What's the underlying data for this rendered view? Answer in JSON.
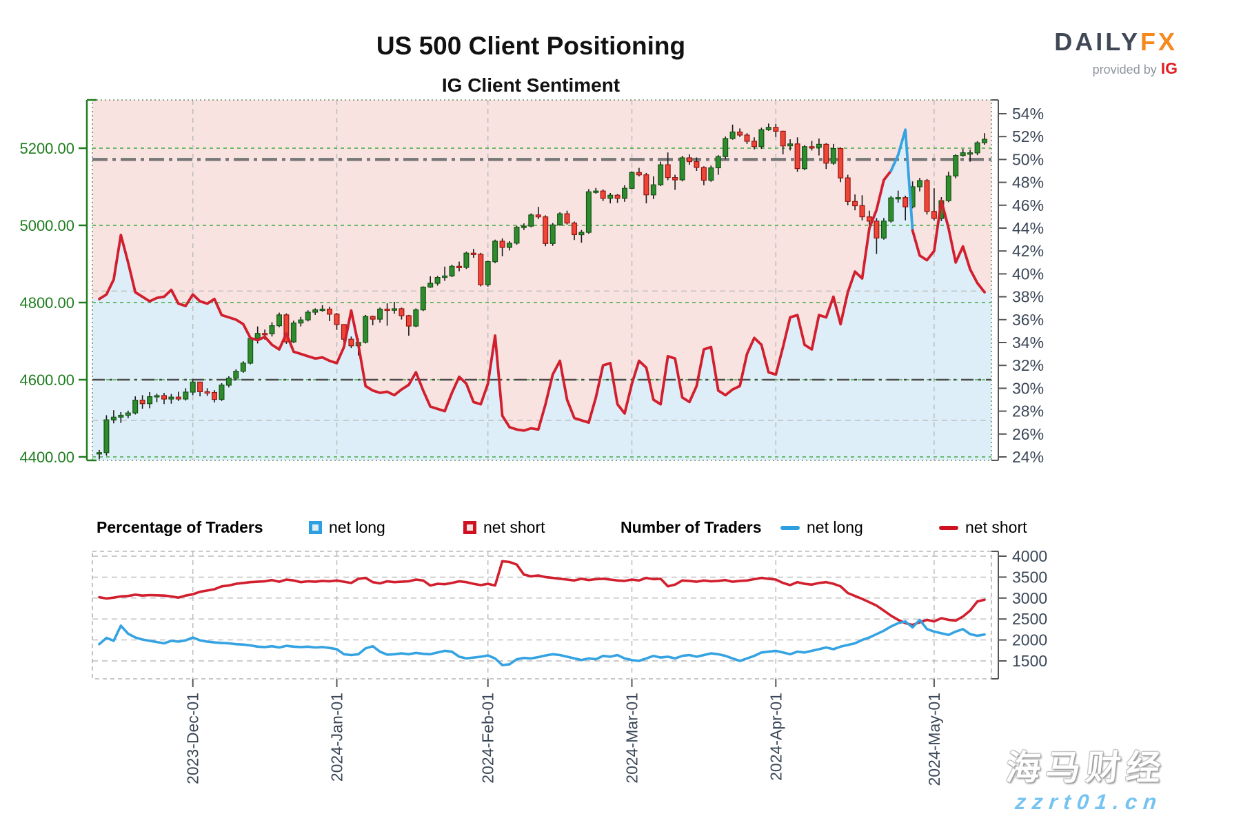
{
  "title": "US 500 Client Positioning",
  "subtitle": "IG Client Sentiment",
  "logo": {
    "daily": "DAILY",
    "fx": "FX",
    "provided": "provided by",
    "ig": "IG"
  },
  "legend": {
    "pct_header": "Percentage of Traders",
    "num_header": "Number of Traders",
    "net_long": "net long",
    "net_short": "net short"
  },
  "watermark": {
    "line1": "海马财经",
    "line2": "zzrt01.cn"
  },
  "colors": {
    "net_long": "#35a3e2",
    "net_short": "#d21f2e",
    "fill_above_line": "#f8e3e1",
    "fill_below_line": "#ddeef8",
    "candle_up": "#2e8b2e",
    "candle_up_border": "#155415",
    "candle_down": "#ef4537",
    "candle_down_border": "#971510",
    "wick": "#1a1a1a",
    "grid_green": "#3faa3f",
    "grid_gray": "#bcbcbc",
    "dashdot_thick": "#787878",
    "dashdot_dark": "#4a4a4a",
    "axis_left": "#1e7d1e",
    "axis_right": "#555555",
    "tick_text": "#3b4757",
    "border_main": "#6b8f6b",
    "border_sub": "#b5b5b5"
  },
  "chart_data": [
    {
      "type": "candlestick+line",
      "title": "US 500 daily price (candles, left axis) vs IG client sentiment % net long (line, right axis)",
      "n_points": 124,
      "x_tick_labels": [
        "2023-Dec-01",
        "2024-Jan-01",
        "2024-Feb-01",
        "2024-Mar-01",
        "2024-Apr-01",
        "2024-May-01"
      ],
      "x_tick_indices": [
        13,
        33,
        54,
        74,
        94,
        116
      ],
      "price_axis": {
        "tick_labels": [
          "4400.00",
          "4600.00",
          "4800.00",
          "5000.00",
          "5200.00"
        ],
        "tick_values": [
          4400,
          4600,
          4800,
          5000,
          5200
        ]
      },
      "pct_axis": {
        "min": 24,
        "max": 54,
        "step": 2,
        "unit": "%"
      },
      "hlines": [
        {
          "axis": "pct",
          "value": 50,
          "style": "dashdot-thick"
        },
        {
          "axis": "price",
          "value": 4600,
          "style": "dashdot-dark"
        },
        {
          "axis": "pct",
          "value": 38.5,
          "style": "gray-dashed"
        },
        {
          "axis": "pct",
          "value": 27.2,
          "style": "gray-dashed"
        }
      ],
      "blue_above_pct": 49.9,
      "candles": [
        [
          4408,
          4418,
          4394,
          4411
        ],
        [
          4411,
          4508,
          4403,
          4496
        ],
        [
          4496,
          4521,
          4487,
          4503
        ],
        [
          4503,
          4516,
          4488,
          4508
        ],
        [
          4508,
          4520,
          4500,
          4514
        ],
        [
          4514,
          4557,
          4510,
          4547
        ],
        [
          4547,
          4560,
          4525,
          4538
        ],
        [
          4538,
          4568,
          4526,
          4556
        ],
        [
          4556,
          4564,
          4542,
          4559
        ],
        [
          4559,
          4566,
          4537,
          4550
        ],
        [
          4550,
          4563,
          4538,
          4555
        ],
        [
          4555,
          4569,
          4545,
          4550
        ],
        [
          4550,
          4578,
          4546,
          4568
        ],
        [
          4568,
          4599,
          4560,
          4594
        ],
        [
          4594,
          4595,
          4557,
          4569
        ],
        [
          4569,
          4578,
          4558,
          4567
        ],
        [
          4567,
          4573,
          4541,
          4549
        ],
        [
          4549,
          4591,
          4545,
          4586
        ],
        [
          4586,
          4609,
          4580,
          4604
        ],
        [
          4604,
          4627,
          4599,
          4622
        ],
        [
          4622,
          4648,
          4618,
          4643
        ],
        [
          4643,
          4712,
          4640,
          4707
        ],
        [
          4707,
          4738,
          4694,
          4720
        ],
        [
          4720,
          4730,
          4704,
          4719
        ],
        [
          4719,
          4749,
          4712,
          4740
        ],
        [
          4740,
          4774,
          4736,
          4768
        ],
        [
          4768,
          4772,
          4693,
          4698
        ],
        [
          4698,
          4753,
          4695,
          4747
        ],
        [
          4747,
          4763,
          4738,
          4755
        ],
        [
          4755,
          4780,
          4751,
          4775
        ],
        [
          4775,
          4785,
          4768,
          4781
        ],
        [
          4781,
          4793,
          4776,
          4783
        ],
        [
          4783,
          4789,
          4752,
          4770
        ],
        [
          4770,
          4773,
          4729,
          4743
        ],
        [
          4743,
          4744,
          4696,
          4705
        ],
        [
          4705,
          4712,
          4682,
          4688
        ],
        [
          4688,
          4707,
          4663,
          4697
        ],
        [
          4697,
          4768,
          4694,
          4764
        ],
        [
          4764,
          4766,
          4741,
          4757
        ],
        [
          4757,
          4787,
          4748,
          4783
        ],
        [
          4783,
          4798,
          4740,
          4780
        ],
        [
          4780,
          4802,
          4771,
          4784
        ],
        [
          4784,
          4787,
          4756,
          4766
        ],
        [
          4766,
          4768,
          4714,
          4739
        ],
        [
          4739,
          4785,
          4736,
          4781
        ],
        [
          4781,
          4842,
          4778,
          4840
        ],
        [
          4840,
          4868,
          4838,
          4850
        ],
        [
          4850,
          4869,
          4844,
          4865
        ],
        [
          4865,
          4893,
          4856,
          4869
        ],
        [
          4869,
          4898,
          4866,
          4894
        ],
        [
          4894,
          4906,
          4881,
          4891
        ],
        [
          4891,
          4932,
          4887,
          4928
        ],
        [
          4928,
          4939,
          4916,
          4925
        ],
        [
          4925,
          4929,
          4842,
          4846
        ],
        [
          4846,
          4909,
          4841,
          4906
        ],
        [
          4906,
          4963,
          4902,
          4959
        ],
        [
          4959,
          4966,
          4920,
          4943
        ],
        [
          4943,
          4959,
          4935,
          4954
        ],
        [
          4954,
          4999,
          4950,
          4995
        ],
        [
          4995,
          5005,
          4988,
          4998
        ],
        [
          4998,
          5031,
          4995,
          5027
        ],
        [
          5027,
          5048,
          5016,
          5022
        ],
        [
          5022,
          5026,
          4946,
          4953
        ],
        [
          4953,
          5006,
          4947,
          5001
        ],
        [
          5001,
          5034,
          4999,
          5030
        ],
        [
          5030,
          5038,
          5002,
          5006
        ],
        [
          5006,
          5010,
          4962,
          4976
        ],
        [
          4976,
          4988,
          4955,
          4982
        ],
        [
          4982,
          5094,
          4978,
          5087
        ],
        [
          5087,
          5097,
          5082,
          5089
        ],
        [
          5089,
          5093,
          5063,
          5070
        ],
        [
          5070,
          5084,
          5057,
          5078
        ],
        [
          5078,
          5081,
          5058,
          5070
        ],
        [
          5070,
          5104,
          5061,
          5096
        ],
        [
          5096,
          5140,
          5094,
          5137
        ],
        [
          5137,
          5149,
          5127,
          5131
        ],
        [
          5131,
          5136,
          5057,
          5079
        ],
        [
          5079,
          5127,
          5068,
          5105
        ],
        [
          5105,
          5165,
          5102,
          5157
        ],
        [
          5157,
          5189,
          5117,
          5124
        ],
        [
          5124,
          5131,
          5092,
          5118
        ],
        [
          5118,
          5180,
          5114,
          5175
        ],
        [
          5175,
          5184,
          5157,
          5165
        ],
        [
          5165,
          5176,
          5141,
          5150
        ],
        [
          5150,
          5153,
          5104,
          5117
        ],
        [
          5117,
          5155,
          5113,
          5149
        ],
        [
          5149,
          5182,
          5131,
          5178
        ],
        [
          5178,
          5230,
          5171,
          5225
        ],
        [
          5225,
          5261,
          5222,
          5242
        ],
        [
          5242,
          5251,
          5229,
          5234
        ],
        [
          5234,
          5239,
          5211,
          5218
        ],
        [
          5218,
          5228,
          5197,
          5204
        ],
        [
          5204,
          5253,
          5198,
          5248
        ],
        [
          5248,
          5264,
          5245,
          5254
        ],
        [
          5254,
          5263,
          5229,
          5244
        ],
        [
          5244,
          5245,
          5184,
          5206
        ],
        [
          5206,
          5223,
          5194,
          5211
        ],
        [
          5211,
          5228,
          5139,
          5147
        ],
        [
          5147,
          5208,
          5143,
          5204
        ],
        [
          5204,
          5219,
          5194,
          5202
        ],
        [
          5202,
          5225,
          5181,
          5210
        ],
        [
          5210,
          5213,
          5146,
          5161
        ],
        [
          5161,
          5211,
          5157,
          5199
        ],
        [
          5199,
          5202,
          5112,
          5123
        ],
        [
          5123,
          5131,
          5052,
          5062
        ],
        [
          5062,
          5080,
          5039,
          5051
        ],
        [
          5051,
          5078,
          5013,
          5022
        ],
        [
          5022,
          5038,
          4990,
          5011
        ],
        [
          5011,
          5019,
          4926,
          4967
        ],
        [
          4967,
          5019,
          4963,
          5011
        ],
        [
          5011,
          5076,
          5007,
          5071
        ],
        [
          5071,
          5090,
          5059,
          5072
        ],
        [
          5072,
          5077,
          5013,
          5048
        ],
        [
          5048,
          5114,
          5044,
          5100
        ],
        [
          5100,
          5123,
          5088,
          5116
        ],
        [
          5116,
          5120,
          5028,
          5036
        ],
        [
          5036,
          5096,
          5013,
          5018
        ],
        [
          5018,
          5073,
          5011,
          5064
        ],
        [
          5064,
          5139,
          5060,
          5128
        ],
        [
          5128,
          5184,
          5122,
          5181
        ],
        [
          5181,
          5198,
          5178,
          5188
        ],
        [
          5188,
          5196,
          5165,
          5188
        ],
        [
          5188,
          5218,
          5182,
          5214
        ],
        [
          5214,
          5239,
          5209,
          5223
        ]
      ],
      "pct_net_long": [
        37.8,
        38.2,
        39.5,
        43.4,
        41.0,
        38.4,
        38.0,
        37.6,
        37.9,
        38.0,
        38.6,
        37.4,
        37.2,
        38.2,
        37.6,
        37.4,
        37.8,
        36.4,
        36.2,
        36.0,
        35.6,
        34.4,
        34.2,
        34.5,
        33.8,
        33.4,
        34.8,
        33.2,
        33.0,
        32.8,
        32.6,
        32.7,
        32.4,
        32.2,
        33.6,
        36.8,
        33.8,
        30.2,
        29.8,
        29.6,
        29.7,
        29.4,
        29.9,
        30.3,
        31.4,
        29.8,
        28.4,
        28.2,
        28.0,
        29.6,
        31.0,
        30.4,
        28.8,
        28.6,
        30.4,
        34.6,
        27.6,
        26.6,
        26.4,
        26.3,
        26.5,
        26.4,
        28.6,
        31.2,
        32.4,
        29.0,
        27.4,
        27.2,
        27.0,
        29.2,
        32.0,
        32.2,
        28.6,
        27.8,
        30.4,
        32.4,
        31.8,
        29.0,
        28.6,
        32.8,
        32.6,
        29.2,
        28.8,
        30.2,
        33.4,
        33.6,
        29.8,
        29.4,
        29.9,
        30.2,
        33.0,
        34.4,
        33.8,
        31.4,
        31.2,
        33.6,
        36.2,
        36.4,
        33.8,
        33.4,
        36.4,
        36.2,
        38.0,
        35.6,
        38.4,
        40.2,
        39.6,
        44.0,
        45.6,
        48.2,
        49.0,
        50.4,
        52.6,
        43.8,
        41.6,
        41.2,
        42.0,
        46.4,
        44.0,
        41.0,
        42.4,
        40.4,
        39.2,
        38.4
      ]
    },
    {
      "type": "line",
      "title": "Number of traders",
      "n_points": 124,
      "y_axis": {
        "tick_labels": [
          "1500",
          "2000",
          "2500",
          "3000",
          "3500",
          "4000"
        ],
        "tick_values": [
          1500,
          2000,
          2500,
          3000,
          3500,
          4000
        ]
      },
      "series": [
        {
          "name": "net short",
          "color": "#d21f2e",
          "values": [
            3020,
            2990,
            3010,
            3040,
            3050,
            3080,
            3060,
            3070,
            3065,
            3060,
            3040,
            3010,
            3060,
            3090,
            3150,
            3180,
            3210,
            3280,
            3300,
            3340,
            3360,
            3380,
            3390,
            3400,
            3430,
            3390,
            3440,
            3420,
            3380,
            3400,
            3390,
            3410,
            3400,
            3420,
            3390,
            3360,
            3460,
            3480,
            3380,
            3350,
            3400,
            3380,
            3390,
            3400,
            3440,
            3420,
            3300,
            3340,
            3330,
            3360,
            3400,
            3380,
            3340,
            3310,
            3340,
            3300,
            3880,
            3860,
            3800,
            3560,
            3520,
            3540,
            3500,
            3480,
            3460,
            3440,
            3420,
            3460,
            3430,
            3450,
            3460,
            3440,
            3420,
            3410,
            3440,
            3420,
            3480,
            3450,
            3460,
            3280,
            3320,
            3420,
            3410,
            3390,
            3420,
            3400,
            3410,
            3430,
            3390,
            3410,
            3420,
            3450,
            3480,
            3460,
            3440,
            3360,
            3310,
            3380,
            3340,
            3320,
            3360,
            3380,
            3340,
            3280,
            3120,
            3050,
            2980,
            2900,
            2820,
            2700,
            2580,
            2480,
            2400,
            2360,
            2420,
            2480,
            2440,
            2520,
            2480,
            2460,
            2560,
            2700,
            2920,
            2960
          ]
        },
        {
          "name": "net long",
          "color": "#35a3e2",
          "values": [
            1900,
            2050,
            1980,
            2340,
            2150,
            2060,
            2010,
            1980,
            1950,
            1920,
            1980,
            1960,
            1990,
            2060,
            1990,
            1960,
            1940,
            1930,
            1920,
            1900,
            1890,
            1870,
            1840,
            1830,
            1850,
            1820,
            1860,
            1840,
            1830,
            1840,
            1820,
            1830,
            1810,
            1780,
            1660,
            1640,
            1660,
            1800,
            1850,
            1720,
            1650,
            1660,
            1680,
            1660,
            1690,
            1670,
            1660,
            1700,
            1740,
            1720,
            1600,
            1560,
            1580,
            1600,
            1630,
            1560,
            1400,
            1420,
            1540,
            1570,
            1560,
            1590,
            1630,
            1660,
            1640,
            1600,
            1560,
            1520,
            1560,
            1540,
            1620,
            1600,
            1640,
            1560,
            1520,
            1500,
            1560,
            1620,
            1580,
            1600,
            1560,
            1620,
            1640,
            1600,
            1640,
            1680,
            1660,
            1620,
            1560,
            1500,
            1560,
            1620,
            1700,
            1720,
            1740,
            1700,
            1660,
            1720,
            1700,
            1740,
            1780,
            1820,
            1780,
            1840,
            1880,
            1920,
            2000,
            2060,
            2140,
            2220,
            2320,
            2400,
            2440,
            2300,
            2480,
            2260,
            2200,
            2160,
            2120,
            2200,
            2260,
            2140,
            2100,
            2130
          ]
        }
      ]
    }
  ]
}
